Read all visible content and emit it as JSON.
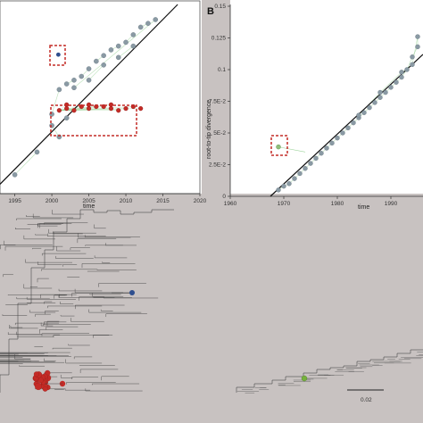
{
  "panel_a": {
    "x_ticks": [
      "1995",
      "2000",
      "2005",
      "2010",
      "2015",
      "2020"
    ],
    "x_label": "time"
  },
  "panel_b": {
    "letter": "B",
    "y_ticks": [
      "0",
      "2.5E-2",
      "5E-2",
      "7.5E-2",
      "0.1",
      "0.125",
      "0.15"
    ],
    "x_ticks": [
      "1960",
      "1970",
      "1980",
      "1990"
    ],
    "x_label": "time",
    "y_label": "root-to-tip divergence"
  },
  "scale_bar": {
    "label": "0.02"
  },
  "colors": {
    "grey_points": "#8a9aa4",
    "red_cluster": "#c42b26",
    "blue_tip": "#2f4f8f",
    "green_tip": "#76b13c",
    "regression_line": "#111111",
    "highlight_box": "#c42b26",
    "background": "#c8c2c1"
  },
  "chart_data": [
    {
      "type": "scatter",
      "panel": "A",
      "xlim": [
        1993,
        2020
      ],
      "ylim": [
        0,
        1
      ],
      "regression": [
        [
          1993,
          0.05
        ],
        [
          2017,
          1.0
        ]
      ],
      "series": [
        {
          "points": [
            [
              1995,
              0.1
            ],
            [
              1998,
              0.22
            ],
            [
              2000,
              0.42
            ],
            [
              2001,
              0.55
            ],
            [
              2002,
              0.58
            ],
            [
              2003,
              0.6
            ],
            [
              2004,
              0.62
            ],
            [
              2005,
              0.66
            ],
            [
              2006,
              0.7
            ],
            [
              2007,
              0.73
            ],
            [
              2008,
              0.76
            ],
            [
              2009,
              0.78
            ],
            [
              2010,
              0.8
            ],
            [
              2011,
              0.84
            ],
            [
              2012,
              0.88
            ],
            [
              2013,
              0.9
            ],
            [
              2014,
              0.92
            ],
            [
              2003,
              0.56
            ],
            [
              2005,
              0.6
            ],
            [
              2007,
              0.68
            ],
            [
              2009,
              0.72
            ],
            [
              2011,
              0.78
            ],
            [
              2001,
              0.3
            ],
            [
              2000,
              0.36
            ],
            [
              2002,
              0.4
            ]
          ]
        },
        {
          "points": [
            [
              2001,
              0.44
            ],
            [
              2002,
              0.45
            ],
            [
              2003,
              0.44
            ],
            [
              2004,
              0.46
            ],
            [
              2005,
              0.45
            ],
            [
              2006,
              0.46
            ],
            [
              2007,
              0.46
            ],
            [
              2008,
              0.45
            ],
            [
              2009,
              0.44
            ],
            [
              2010,
              0.45
            ],
            [
              2011,
              0.46
            ],
            [
              2012,
              0.45
            ],
            [
              2002,
              0.47
            ],
            [
              2005,
              0.47
            ],
            [
              2008,
              0.47
            ]
          ]
        },
        {
          "points": [
            [
              2001,
              0.73
            ]
          ]
        }
      ]
    },
    {
      "type": "scatter",
      "panel": "B",
      "xlim": [
        1960,
        1996
      ],
      "ylim": [
        0,
        0.15
      ],
      "x_ticks": [
        1960,
        1970,
        1980,
        1990
      ],
      "y_ticks": [
        0,
        0.025,
        0.05,
        0.075,
        0.1,
        0.125,
        0.15
      ],
      "regression": [
        [
          1967.5,
          0
        ],
        [
          1996,
          0.112
        ]
      ],
      "series": [
        {
          "points": [
            [
              1969,
              0.005
            ],
            [
              1970,
              0.008
            ],
            [
              1971,
              0.01
            ],
            [
              1972,
              0.014
            ],
            [
              1973,
              0.018
            ],
            [
              1974,
              0.022
            ],
            [
              1975,
              0.026
            ],
            [
              1976,
              0.03
            ],
            [
              1977,
              0.034
            ],
            [
              1978,
              0.038
            ],
            [
              1979,
              0.042
            ],
            [
              1980,
              0.046
            ],
            [
              1981,
              0.05
            ],
            [
              1982,
              0.054
            ],
            [
              1983,
              0.058
            ],
            [
              1984,
              0.062
            ],
            [
              1985,
              0.066
            ],
            [
              1986,
              0.07
            ],
            [
              1987,
              0.074
            ],
            [
              1988,
              0.078
            ],
            [
              1989,
              0.082
            ],
            [
              1990,
              0.086
            ],
            [
              1991,
              0.09
            ],
            [
              1992,
              0.094
            ],
            [
              1993,
              0.1
            ],
            [
              1994,
              0.11
            ],
            [
              1995,
              0.118
            ],
            [
              1995,
              0.126
            ],
            [
              1994,
              0.104
            ],
            [
              1992,
              0.098
            ],
            [
              1988,
              0.082
            ],
            [
              1984,
              0.064
            ]
          ]
        },
        {
          "points": [
            [
              1969,
              0.039
            ]
          ]
        }
      ]
    }
  ]
}
